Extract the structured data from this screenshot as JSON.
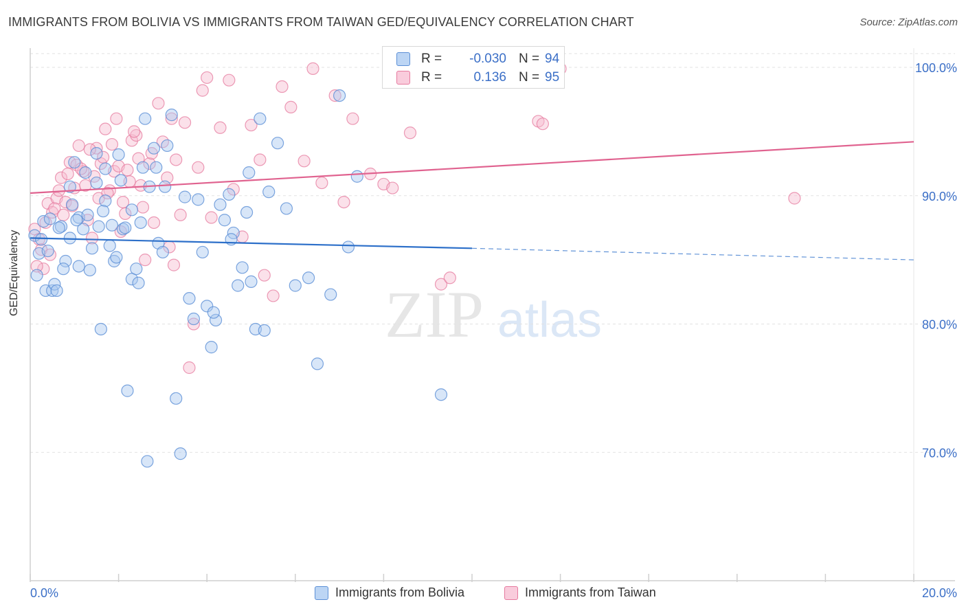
{
  "title": "IMMIGRANTS FROM BOLIVIA VS IMMIGRANTS FROM TAIWAN GED/EQUIVALENCY CORRELATION CHART",
  "source": "Source: ZipAtlas.com",
  "watermark": {
    "zip": "ZIP",
    "atlas": "atlas"
  },
  "colors": {
    "bolivia_fill": "#a9c8f0",
    "bolivia_stroke": "#5b8fd6",
    "bolivia_line": "#2c6fc9",
    "taiwan_fill": "#f6bcd0",
    "taiwan_stroke": "#e6799e",
    "taiwan_line": "#e0628f",
    "axis_label": "#3b6fc7",
    "grid": "#e2e2e2"
  },
  "stats": {
    "rows": [
      {
        "r_label": "R =",
        "r_value": "-0.030",
        "n_label": "N =",
        "n_value": "94"
      },
      {
        "r_label": "R =",
        "r_value": "0.136",
        "n_label": "N =",
        "n_value": "95"
      }
    ]
  },
  "legend": {
    "bolivia": "Immigrants from Bolivia",
    "taiwan": "Immigrants from Taiwan"
  },
  "chart_data": {
    "type": "scatter",
    "title": "IMMIGRANTS FROM BOLIVIA VS IMMIGRANTS FROM TAIWAN GED/EQUIVALENCY CORRELATION CHART",
    "xlabel": "",
    "ylabel": "GED/Equivalency",
    "xlim": [
      0,
      20
    ],
    "ylim": [
      60,
      101.5
    ],
    "x_tick_labels": [
      "0.0%",
      "20.0%"
    ],
    "y_ticks": [
      70,
      80,
      90,
      100
    ],
    "y_tick_labels": [
      "70.0%",
      "80.0%",
      "90.0%",
      "100.0%"
    ],
    "grid": true,
    "series": [
      {
        "name": "Immigrants from Bolivia",
        "trend": {
          "x0": 0,
          "y0": 86.7,
          "x1": 10,
          "y1": 85.9,
          "dash_x1": 20,
          "dash_y1": 85.0
        },
        "points": [
          [
            0.1,
            86.9
          ],
          [
            0.2,
            85.5
          ],
          [
            0.3,
            88.0
          ],
          [
            0.35,
            82.6
          ],
          [
            0.4,
            85.7
          ],
          [
            0.5,
            82.6
          ],
          [
            0.55,
            83.1
          ],
          [
            0.6,
            82.6
          ],
          [
            0.7,
            87.6
          ],
          [
            0.8,
            84.9
          ],
          [
            0.9,
            86.7
          ],
          [
            0.9,
            90.7
          ],
          [
            1.0,
            92.6
          ],
          [
            1.1,
            88.3
          ],
          [
            1.1,
            84.5
          ],
          [
            1.2,
            87.4
          ],
          [
            1.3,
            88.5
          ],
          [
            1.4,
            85.9
          ],
          [
            1.5,
            93.3
          ],
          [
            1.5,
            91.0
          ],
          [
            1.6,
            79.6
          ],
          [
            1.7,
            92.1
          ],
          [
            1.7,
            89.6
          ],
          [
            1.8,
            86.1
          ],
          [
            1.9,
            84.9
          ],
          [
            2.0,
            93.2
          ],
          [
            2.1,
            87.4
          ],
          [
            2.2,
            74.8
          ],
          [
            2.3,
            88.9
          ],
          [
            2.3,
            83.5
          ],
          [
            2.4,
            84.3
          ],
          [
            2.5,
            87.9
          ],
          [
            2.6,
            96.0
          ],
          [
            2.7,
            90.7
          ],
          [
            2.8,
            93.7
          ],
          [
            2.9,
            86.3
          ],
          [
            3.0,
            85.6
          ],
          [
            3.1,
            93.9
          ],
          [
            3.2,
            96.3
          ],
          [
            3.3,
            74.2
          ],
          [
            3.4,
            69.9
          ],
          [
            3.5,
            89.9
          ],
          [
            3.6,
            82.0
          ],
          [
            3.7,
            80.4
          ],
          [
            3.8,
            89.7
          ],
          [
            3.9,
            85.6
          ],
          [
            4.0,
            81.4
          ],
          [
            4.1,
            78.2
          ],
          [
            4.2,
            80.3
          ],
          [
            4.3,
            89.3
          ],
          [
            4.4,
            88.1
          ],
          [
            4.5,
            90.1
          ],
          [
            4.6,
            87.1
          ],
          [
            4.7,
            83.0
          ],
          [
            4.8,
            84.4
          ],
          [
            4.9,
            88.7
          ],
          [
            5.0,
            83.3
          ],
          [
            5.1,
            79.6
          ],
          [
            5.2,
            96.0
          ],
          [
            5.3,
            79.5
          ],
          [
            5.4,
            90.3
          ],
          [
            5.6,
            94.1
          ],
          [
            5.8,
            89.0
          ],
          [
            6.0,
            83.0
          ],
          [
            6.3,
            83.6
          ],
          [
            6.5,
            76.9
          ],
          [
            6.8,
            82.3
          ],
          [
            7.0,
            97.8
          ],
          [
            7.2,
            86.0
          ],
          [
            7.4,
            91.5
          ],
          [
            9.3,
            74.5
          ],
          [
            0.15,
            83.8
          ],
          [
            0.25,
            86.6
          ],
          [
            0.45,
            88.2
          ],
          [
            0.65,
            87.5
          ],
          [
            0.75,
            84.3
          ],
          [
            0.95,
            89.3
          ],
          [
            1.05,
            88.1
          ],
          [
            1.25,
            91.8
          ],
          [
            1.35,
            84.2
          ],
          [
            1.55,
            87.6
          ],
          [
            1.65,
            88.8
          ],
          [
            1.85,
            87.7
          ],
          [
            1.95,
            85.2
          ],
          [
            2.05,
            91.2
          ],
          [
            2.15,
            87.5
          ],
          [
            2.45,
            83.2
          ],
          [
            2.55,
            92.2
          ],
          [
            2.65,
            69.3
          ],
          [
            2.85,
            92.2
          ],
          [
            3.05,
            90.7
          ],
          [
            4.15,
            80.9
          ],
          [
            4.55,
            86.6
          ],
          [
            4.95,
            91.8
          ]
        ]
      },
      {
        "name": "Immigrants from Taiwan",
        "trend": {
          "x0": 0,
          "y0": 90.2,
          "x1": 20,
          "y1": 94.2
        },
        "points": [
          [
            0.1,
            87.4
          ],
          [
            0.2,
            86.6
          ],
          [
            0.3,
            84.3
          ],
          [
            0.4,
            89.4
          ],
          [
            0.5,
            88.7
          ],
          [
            0.6,
            89.8
          ],
          [
            0.7,
            91.4
          ],
          [
            0.8,
            89.5
          ],
          [
            0.9,
            92.6
          ],
          [
            1.0,
            90.6
          ],
          [
            1.1,
            93.9
          ],
          [
            1.2,
            91.9
          ],
          [
            1.3,
            88.1
          ],
          [
            1.4,
            86.7
          ],
          [
            1.5,
            93.7
          ],
          [
            1.6,
            92.5
          ],
          [
            1.7,
            95.2
          ],
          [
            1.8,
            90.4
          ],
          [
            1.9,
            91.9
          ],
          [
            2.0,
            92.3
          ],
          [
            2.1,
            89.5
          ],
          [
            2.2,
            92.0
          ],
          [
            2.3,
            94.3
          ],
          [
            2.4,
            94.7
          ],
          [
            2.5,
            90.8
          ],
          [
            2.6,
            85.0
          ],
          [
            2.7,
            92.5
          ],
          [
            2.8,
            87.9
          ],
          [
            2.9,
            97.2
          ],
          [
            3.0,
            94.2
          ],
          [
            3.1,
            91.4
          ],
          [
            3.2,
            96.0
          ],
          [
            3.3,
            92.8
          ],
          [
            3.4,
            88.5
          ],
          [
            3.5,
            95.7
          ],
          [
            3.6,
            76.6
          ],
          [
            3.7,
            80.0
          ],
          [
            3.8,
            92.2
          ],
          [
            3.9,
            98.2
          ],
          [
            4.0,
            99.2
          ],
          [
            4.1,
            88.3
          ],
          [
            4.3,
            95.3
          ],
          [
            4.5,
            99.0
          ],
          [
            4.6,
            90.5
          ],
          [
            4.8,
            86.8
          ],
          [
            5.0,
            95.5
          ],
          [
            5.2,
            92.8
          ],
          [
            5.3,
            83.8
          ],
          [
            5.5,
            82.2
          ],
          [
            5.7,
            98.5
          ],
          [
            5.9,
            96.9
          ],
          [
            6.2,
            92.7
          ],
          [
            6.4,
            99.9
          ],
          [
            6.6,
            91.0
          ],
          [
            6.9,
            97.8
          ],
          [
            7.1,
            89.5
          ],
          [
            7.3,
            96.0
          ],
          [
            7.7,
            91.7
          ],
          [
            8.0,
            90.9
          ],
          [
            8.2,
            90.6
          ],
          [
            8.6,
            94.9
          ],
          [
            9.3,
            83.1
          ],
          [
            9.5,
            83.6
          ],
          [
            11.5,
            95.8
          ],
          [
            11.6,
            95.6
          ],
          [
            12.0,
            99.9
          ],
          [
            17.3,
            89.8
          ],
          [
            0.15,
            84.5
          ],
          [
            0.25,
            85.8
          ],
          [
            0.35,
            87.9
          ],
          [
            0.45,
            85.4
          ],
          [
            0.55,
            89.0
          ],
          [
            0.65,
            90.4
          ],
          [
            0.75,
            88.5
          ],
          [
            0.85,
            91.7
          ],
          [
            0.95,
            89.2
          ],
          [
            1.05,
            92.4
          ],
          [
            1.15,
            92.1
          ],
          [
            1.25,
            90.8
          ],
          [
            1.35,
            93.6
          ],
          [
            1.45,
            91.5
          ],
          [
            1.55,
            89.8
          ],
          [
            1.65,
            93.0
          ],
          [
            1.75,
            90.2
          ],
          [
            1.85,
            94.0
          ],
          [
            1.95,
            96.0
          ],
          [
            2.05,
            87.2
          ],
          [
            2.15,
            88.6
          ],
          [
            2.25,
            91.1
          ],
          [
            2.35,
            95.0
          ],
          [
            2.45,
            92.9
          ],
          [
            2.55,
            89.1
          ],
          [
            2.75,
            93.3
          ],
          [
            3.15,
            86.0
          ],
          [
            3.25,
            84.6
          ]
        ]
      }
    ]
  }
}
